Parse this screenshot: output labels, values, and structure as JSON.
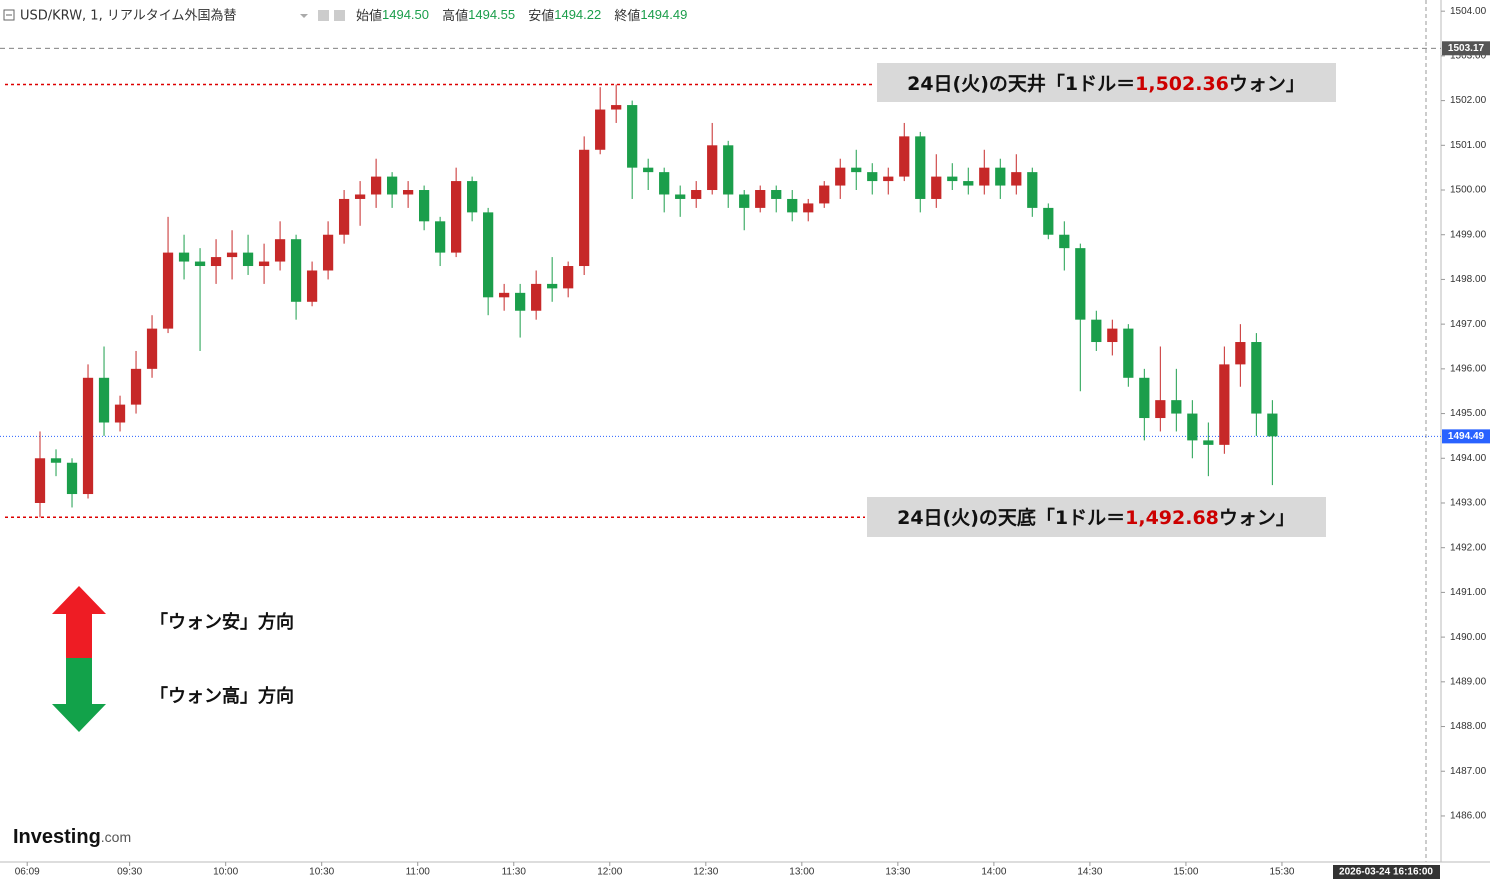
{
  "header": {
    "symbol": "USD/KRW, 1, リアルタイム外国為替",
    "open_label": "始値",
    "open": "1494.50",
    "high_label": "高値",
    "high": "1494.55",
    "low_label": "安値",
    "low": "1494.22",
    "close_label": "終値",
    "close": "1494.49"
  },
  "chart_data": {
    "type": "candlestick",
    "open": [
      1493.0,
      1494.0,
      1493.9,
      1493.2,
      1495.8,
      1494.8,
      1495.2,
      1496.0,
      1496.9,
      1498.6,
      1498.4,
      1498.3,
      1498.5,
      1498.6,
      1498.3,
      1498.4,
      1498.9,
      1497.5,
      1498.2,
      1499.0,
      1499.8,
      1499.9,
      1500.3,
      1499.9,
      1500.0,
      1499.3,
      1498.6,
      1500.2,
      1499.5,
      1497.6,
      1497.7,
      1497.3,
      1497.9,
      1497.8,
      1498.3,
      1500.9,
      1501.8,
      1501.9,
      1500.5,
      1500.4,
      1499.9,
      1499.8,
      1500.0,
      1501.0,
      1499.9,
      1499.6,
      1500.0,
      1499.8,
      1499.5,
      1499.7,
      1500.1,
      1500.5,
      1500.4,
      1500.2,
      1500.3,
      1501.2,
      1499.8,
      1500.3,
      1500.2,
      1500.1,
      1500.5,
      1500.1,
      1500.4,
      1499.6,
      1499.0,
      1498.7,
      1497.1,
      1496.6,
      1496.9,
      1495.8,
      1494.9,
      1495.3,
      1495.0,
      1494.4,
      1494.3,
      1496.1,
      1496.6,
      1495.0
    ],
    "high": [
      1494.6,
      1494.2,
      1494.0,
      1496.1,
      1496.5,
      1495.4,
      1496.4,
      1497.2,
      1499.4,
      1499.0,
      1498.7,
      1498.9,
      1499.1,
      1499.0,
      1498.8,
      1499.3,
      1499.0,
      1498.4,
      1499.3,
      1500.0,
      1500.2,
      1500.7,
      1500.4,
      1500.2,
      1500.1,
      1499.4,
      1500.5,
      1500.3,
      1499.6,
      1497.9,
      1497.9,
      1498.2,
      1498.5,
      1498.4,
      1501.2,
      1502.3,
      1502.36,
      1502.0,
      1500.7,
      1500.5,
      1500.1,
      1500.2,
      1501.5,
      1501.1,
      1500.0,
      1500.1,
      1500.1,
      1500.0,
      1499.8,
      1500.2,
      1500.7,
      1500.9,
      1500.6,
      1500.5,
      1501.5,
      1501.3,
      1500.8,
      1500.6,
      1500.5,
      1500.9,
      1500.7,
      1500.8,
      1500.5,
      1499.7,
      1499.3,
      1498.8,
      1497.3,
      1497.1,
      1497.0,
      1496.0,
      1496.5,
      1496.0,
      1495.3,
      1494.8,
      1496.5,
      1497.0,
      1496.8,
      1495.3
    ],
    "low": [
      1492.68,
      1493.6,
      1492.9,
      1493.1,
      1494.5,
      1494.6,
      1495.0,
      1495.8,
      1496.8,
      1498.0,
      1496.4,
      1497.9,
      1498.0,
      1498.1,
      1497.9,
      1498.2,
      1497.1,
      1497.4,
      1498.0,
      1498.8,
      1499.2,
      1499.6,
      1499.6,
      1499.6,
      1499.1,
      1498.3,
      1498.5,
      1499.3,
      1497.2,
      1497.3,
      1496.7,
      1497.1,
      1497.5,
      1497.6,
      1498.1,
      1500.8,
      1501.5,
      1499.8,
      1500.0,
      1499.5,
      1499.4,
      1499.6,
      1499.9,
      1499.6,
      1499.1,
      1499.5,
      1499.5,
      1499.3,
      1499.3,
      1499.6,
      1499.8,
      1500.0,
      1499.9,
      1499.9,
      1500.2,
      1499.5,
      1499.6,
      1500.0,
      1499.9,
      1499.9,
      1499.8,
      1499.9,
      1499.4,
      1498.9,
      1498.2,
      1495.5,
      1496.4,
      1496.3,
      1495.6,
      1494.4,
      1494.6,
      1494.6,
      1494.0,
      1493.6,
      1494.1,
      1495.6,
      1494.5,
      1493.4
    ],
    "close": [
      1494.0,
      1493.9,
      1493.2,
      1495.8,
      1494.8,
      1495.2,
      1496.0,
      1496.9,
      1498.6,
      1498.4,
      1498.3,
      1498.5,
      1498.6,
      1498.3,
      1498.4,
      1498.9,
      1497.5,
      1498.2,
      1499.0,
      1499.8,
      1499.9,
      1500.3,
      1499.9,
      1500.0,
      1499.3,
      1498.6,
      1500.2,
      1499.5,
      1497.6,
      1497.7,
      1497.3,
      1497.9,
      1497.8,
      1498.3,
      1500.9,
      1501.8,
      1501.9,
      1500.5,
      1500.4,
      1499.9,
      1499.8,
      1500.0,
      1501.0,
      1499.9,
      1499.6,
      1500.0,
      1499.8,
      1499.5,
      1499.7,
      1500.1,
      1500.5,
      1500.4,
      1500.2,
      1500.3,
      1501.2,
      1499.8,
      1500.3,
      1500.2,
      1500.1,
      1500.5,
      1500.1,
      1500.4,
      1499.6,
      1499.0,
      1498.7,
      1497.1,
      1496.6,
      1496.9,
      1495.8,
      1494.9,
      1495.3,
      1495.0,
      1494.4,
      1494.3,
      1496.1,
      1496.6,
      1495.0,
      1494.49
    ],
    "up_color": "#c62828",
    "down_color": "#1b9e4b",
    "xlim": [
      -2.5,
      86.6
    ],
    "xticks": [
      {
        "value": -0.8,
        "label": "06:09"
      },
      {
        "value": 5.6,
        "label": "09:30"
      },
      {
        "value": 11.6,
        "label": "10:00"
      },
      {
        "value": 17.6,
        "label": "10:30"
      },
      {
        "value": 23.6,
        "label": "11:00"
      },
      {
        "value": 29.6,
        "label": "11:30"
      },
      {
        "value": 35.6,
        "label": "12:00"
      },
      {
        "value": 41.6,
        "label": "12:30"
      },
      {
        "value": 47.6,
        "label": "13:00"
      },
      {
        "value": 53.6,
        "label": "13:30"
      },
      {
        "value": 59.6,
        "label": "14:00"
      },
      {
        "value": 65.6,
        "label": "14:30"
      },
      {
        "value": 71.6,
        "label": "15:00"
      },
      {
        "value": 77.6,
        "label": "15:30"
      }
    ],
    "ylim": [
      1484.97,
      1504.25
    ],
    "yticks": [
      {
        "value": 1486,
        "label": "1486.00"
      },
      {
        "value": 1487,
        "label": "1487.00"
      },
      {
        "value": 1488,
        "label": "1488.00"
      },
      {
        "value": 1489,
        "label": "1489.00"
      },
      {
        "value": 1490,
        "label": "1490.00"
      },
      {
        "value": 1491,
        "label": "1491.00"
      },
      {
        "value": 1492,
        "label": "1492.00"
      },
      {
        "value": 1493,
        "label": "1493.00"
      },
      {
        "value": 1494,
        "label": "1494.00"
      },
      {
        "value": 1495,
        "label": "1495.00"
      },
      {
        "value": 1496,
        "label": "1496.00"
      },
      {
        "value": 1497,
        "label": "1497.00"
      },
      {
        "value": 1498,
        "label": "1498.00"
      },
      {
        "value": 1499,
        "label": "1499.00"
      },
      {
        "value": 1500,
        "label": "1500.00"
      },
      {
        "value": 1501,
        "label": "1501.00"
      },
      {
        "value": 1502,
        "label": "1502.00"
      },
      {
        "value": 1503,
        "label": "1503.00"
      },
      {
        "value": 1504,
        "label": "1504.00"
      }
    ],
    "last_price": 1494.49,
    "last_price_color": "#2962ff",
    "ref_price": 1503.17,
    "ref_price_color": "#555555",
    "timestamp": "2026-03-24 16:16:00",
    "annotations": [
      {
        "prefix": "24日(火)の天井「1ドル＝",
        "value": 1502.36,
        "value_label": "1,502.36",
        "suffix": "ウォン」"
      },
      {
        "prefix": "24日(火)の天底「1ドル＝",
        "value": 1492.68,
        "value_label": "1,492.68",
        "suffix": "ウォン」"
      }
    ]
  },
  "legend_arrows": {
    "up": "「ウォン安」方向",
    "down": "「ウォン高」方向"
  },
  "logo": {
    "brand": "Investing",
    "suffix": ".com"
  }
}
